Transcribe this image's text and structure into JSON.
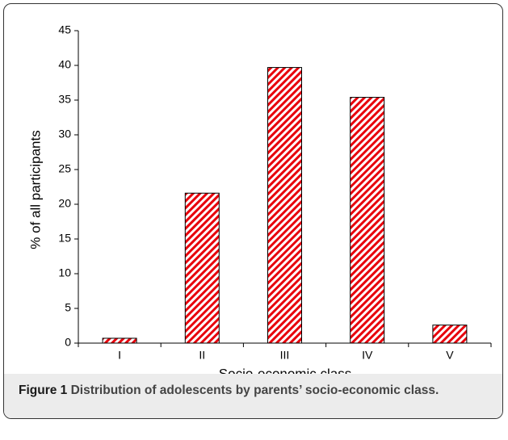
{
  "chart_data": {
    "type": "bar",
    "x_label": "Socio-economic class",
    "y_label": "% of all participants",
    "categories": [
      "I",
      "II",
      "III",
      "IV",
      "V"
    ],
    "values": [
      0.7,
      21.6,
      39.7,
      35.4,
      2.6
    ],
    "color": "#e8000b",
    "ylim": [
      0,
      45
    ],
    "yticks": [
      0,
      5,
      10,
      15,
      20,
      25,
      30,
      35,
      40,
      45
    ]
  },
  "figure": {
    "label": "Figure 1",
    "text": "Distribution of adolescents by parents’ socio-economic class."
  }
}
